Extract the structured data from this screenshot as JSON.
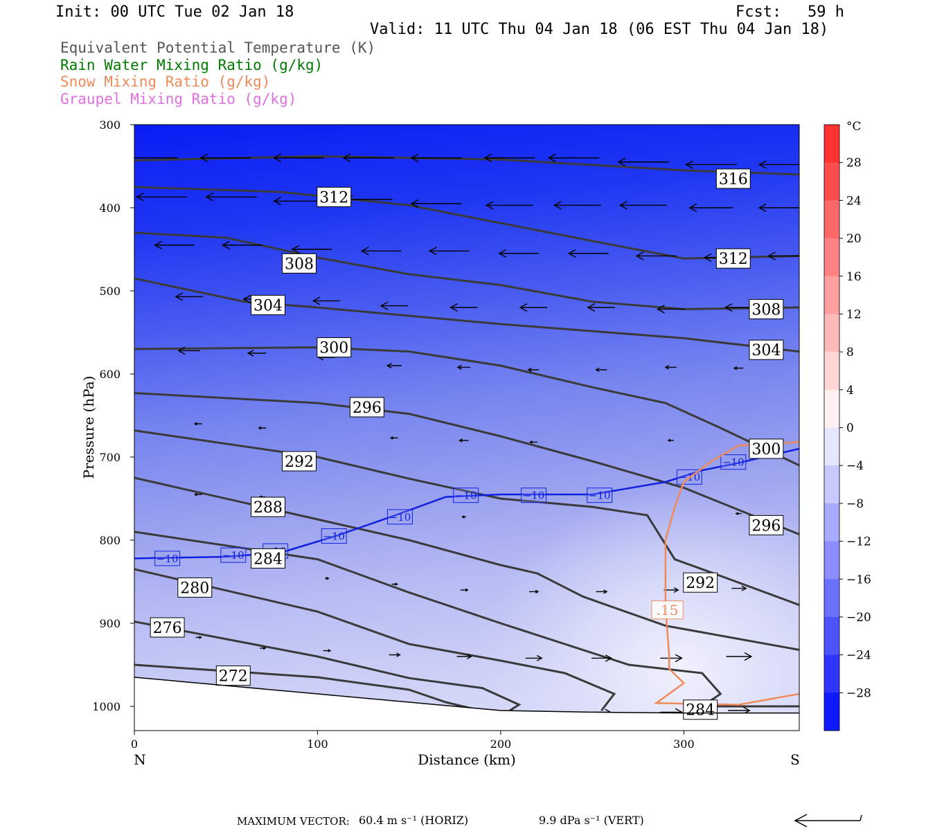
{
  "header": {
    "init": "Init: 00 UTC Tue 02 Jan 18",
    "fcst_label": "Fcst:",
    "fcst_value": "59 h",
    "valid": "Valid: 11 UTC Thu 04 Jan 18 (06 EST Thu 04 Jan 18)"
  },
  "legend": [
    {
      "label": "Equivalent Potential Temperature (K)",
      "color": "#555555"
    },
    {
      "label": "Rain Water Mixing Ratio (g/kg)",
      "color": "#007a00"
    },
    {
      "label": "Snow Mixing Ratio (g/kg)",
      "color": "#f08a5a"
    },
    {
      "label": "Graupel Mixing Ratio (g/kg)",
      "color": "#e070e0"
    }
  ],
  "chart_data": {
    "type": "cross-section",
    "xlabel": "Distance (km)",
    "ylabel": "Pressure (hPa)",
    "xlim": [
      0,
      363
    ],
    "ylim": [
      1030,
      300
    ],
    "x_ticks": [
      0,
      100,
      200,
      300
    ],
    "y_ticks": [
      300,
      400,
      500,
      600,
      700,
      800,
      900,
      1000
    ],
    "x_end_labels": {
      "left": "N",
      "right": "S"
    },
    "colorbar": {
      "unit": "°C",
      "min": -32,
      "max": 32,
      "step": 4,
      "tick_labels": [
        "28",
        "24",
        "20",
        "16",
        "12",
        "8",
        "4",
        "0",
        "−4",
        "−8",
        "−12",
        "−16",
        "−20",
        "−24",
        "−28"
      ]
    },
    "theta_e_contours": [
      {
        "value": 316,
        "points": [
          [
            0,
            343
          ],
          [
            100,
            338
          ],
          [
            200,
            342
          ],
          [
            300,
            355
          ],
          [
            363,
            360
          ]
        ]
      },
      {
        "value": 312,
        "points": [
          [
            0,
            375
          ],
          [
            80,
            381
          ],
          [
            150,
            397
          ],
          [
            250,
            440
          ],
          [
            300,
            461
          ],
          [
            363,
            458
          ]
        ]
      },
      {
        "value": 308,
        "points": [
          [
            0,
            430
          ],
          [
            50,
            436
          ],
          [
            100,
            460
          ],
          [
            150,
            480
          ],
          [
            200,
            493
          ],
          [
            250,
            513
          ],
          [
            300,
            522
          ],
          [
            363,
            520
          ]
        ]
      },
      {
        "value": 304,
        "points": [
          [
            0,
            485
          ],
          [
            60,
            513
          ],
          [
            100,
            520
          ],
          [
            200,
            540
          ],
          [
            300,
            557
          ],
          [
            363,
            573
          ]
        ]
      },
      {
        "value": 300,
        "points": [
          [
            0,
            570
          ],
          [
            100,
            568
          ],
          [
            150,
            573
          ],
          [
            200,
            590
          ],
          [
            250,
            616
          ],
          [
            290,
            635
          ],
          [
            320,
            665
          ],
          [
            363,
            710
          ]
        ]
      },
      {
        "value": 296,
        "points": [
          [
            0,
            623
          ],
          [
            100,
            635
          ],
          [
            150,
            648
          ],
          [
            200,
            675
          ],
          [
            250,
            705
          ],
          [
            300,
            737
          ],
          [
            363,
            793
          ]
        ]
      },
      {
        "value": 292,
        "points": [
          [
            0,
            668
          ],
          [
            100,
            700
          ],
          [
            150,
            726
          ],
          [
            200,
            750
          ],
          [
            250,
            760
          ],
          [
            280,
            770
          ],
          [
            295,
            823
          ],
          [
            320,
            843
          ],
          [
            363,
            878
          ]
        ]
      },
      {
        "value": 288,
        "points": [
          [
            0,
            725
          ],
          [
            100,
            775
          ],
          [
            150,
            800
          ],
          [
            200,
            830
          ],
          [
            220,
            840
          ],
          [
            245,
            868
          ],
          [
            290,
            903
          ],
          [
            363,
            932
          ]
        ]
      },
      {
        "value": 284,
        "points": [
          [
            0,
            790
          ],
          [
            100,
            823
          ],
          [
            150,
            863
          ],
          [
            200,
            900
          ],
          [
            270,
            950
          ],
          [
            310,
            960
          ],
          [
            320,
            985
          ],
          [
            310,
            1000
          ],
          [
            363,
            1000
          ]
        ]
      },
      {
        "value": 280,
        "points": [
          [
            0,
            835
          ],
          [
            100,
            886
          ],
          [
            150,
            925
          ],
          [
            200,
            945
          ],
          [
            235,
            960
          ],
          [
            262,
            985
          ],
          [
            255,
            1005
          ]
        ]
      },
      {
        "value": 276,
        "points": [
          [
            0,
            898
          ],
          [
            100,
            940
          ],
          [
            150,
            966
          ],
          [
            190,
            978
          ],
          [
            210,
            998
          ],
          [
            205,
            1005
          ]
        ]
      },
      {
        "value": 272,
        "points": [
          [
            0,
            950
          ],
          [
            100,
            965
          ],
          [
            150,
            980
          ],
          [
            170,
            995
          ],
          [
            185,
            1003
          ]
        ]
      }
    ],
    "theta_e_labels": [
      {
        "value": "316",
        "x": 327,
        "p": 365
      },
      {
        "value": "312",
        "x": 109,
        "p": 387
      },
      {
        "value": "312",
        "x": 327,
        "p": 461
      },
      {
        "value": "308",
        "x": 90,
        "p": 467
      },
      {
        "value": "308",
        "x": 345,
        "p": 522
      },
      {
        "value": "304",
        "x": 73,
        "p": 517
      },
      {
        "value": "304",
        "x": 345,
        "p": 571
      },
      {
        "value": "300",
        "x": 109,
        "p": 568
      },
      {
        "value": "300",
        "x": 345,
        "p": 690
      },
      {
        "value": "296",
        "x": 127,
        "p": 640
      },
      {
        "value": "296",
        "x": 345,
        "p": 782
      },
      {
        "value": "292",
        "x": 90,
        "p": 705
      },
      {
        "value": "292",
        "x": 309,
        "p": 851
      },
      {
        "value": "288",
        "x": 73,
        "p": 760
      },
      {
        "value": "284",
        "x": 73,
        "p": 822
      },
      {
        "value": "284",
        "x": 309,
        "p": 1004
      },
      {
        "value": "280",
        "x": 33,
        "p": 857
      },
      {
        "value": "276",
        "x": 18,
        "p": 905
      },
      {
        "value": "272",
        "x": 54,
        "p": 963
      }
    ],
    "isotherm_minus10": {
      "value": "−10",
      "points": [
        [
          0,
          822
        ],
        [
          50,
          820
        ],
        [
          80,
          815
        ],
        [
          110,
          795
        ],
        [
          140,
          772
        ],
        [
          170,
          748
        ],
        [
          200,
          745
        ],
        [
          250,
          745
        ],
        [
          290,
          730
        ],
        [
          310,
          716
        ],
        [
          330,
          707
        ],
        [
          363,
          690
        ]
      ],
      "label_positions": [
        [
          18,
          822
        ],
        [
          54,
          818
        ],
        [
          77,
          813
        ],
        [
          109,
          795
        ],
        [
          145,
          772
        ],
        [
          181,
          746
        ],
        [
          218,
          746
        ],
        [
          254,
          746
        ],
        [
          303,
          724
        ],
        [
          327,
          706
        ]
      ]
    },
    "snow_contour": {
      "value": ".15",
      "points": [
        [
          363,
          682
        ],
        [
          330,
          686
        ],
        [
          315,
          705
        ],
        [
          300,
          730
        ],
        [
          295,
          760
        ],
        [
          290,
          800
        ],
        [
          290,
          880
        ],
        [
          292,
          940
        ],
        [
          292,
          955
        ],
        [
          300,
          972
        ],
        [
          285,
          996
        ],
        [
          330,
          998
        ],
        [
          363,
          985
        ]
      ],
      "label_position": [
        291,
        884
      ]
    },
    "wind_vectors": [
      {
        "x": 10,
        "p": 340,
        "len": 28
      },
      {
        "x": 50,
        "p": 340,
        "len": 28
      },
      {
        "x": 90,
        "p": 340,
        "len": 28
      },
      {
        "x": 128,
        "p": 340,
        "len": 28
      },
      {
        "x": 165,
        "p": 340,
        "len": 28
      },
      {
        "x": 205,
        "p": 340,
        "len": 28
      },
      {
        "x": 240,
        "p": 340,
        "len": 28
      },
      {
        "x": 278,
        "p": 345,
        "len": 28
      },
      {
        "x": 315,
        "p": 348,
        "len": 28
      },
      {
        "x": 352,
        "p": 348,
        "len": 22
      },
      {
        "x": 15,
        "p": 387,
        "len": 28
      },
      {
        "x": 53,
        "p": 387,
        "len": 28
      },
      {
        "x": 90,
        "p": 392,
        "len": 28
      },
      {
        "x": 128,
        "p": 390,
        "len": 26
      },
      {
        "x": 165,
        "p": 395,
        "len": 28
      },
      {
        "x": 205,
        "p": 397,
        "len": 26
      },
      {
        "x": 242,
        "p": 397,
        "len": 26
      },
      {
        "x": 278,
        "p": 397,
        "len": 26
      },
      {
        "x": 315,
        "p": 400,
        "len": 24
      },
      {
        "x": 352,
        "p": 400,
        "len": 22
      },
      {
        "x": 22,
        "p": 445,
        "len": 22
      },
      {
        "x": 59,
        "p": 445,
        "len": 22
      },
      {
        "x": 97,
        "p": 450,
        "len": 22
      },
      {
        "x": 135,
        "p": 452,
        "len": 22
      },
      {
        "x": 172,
        "p": 452,
        "len": 22
      },
      {
        "x": 210,
        "p": 455,
        "len": 22
      },
      {
        "x": 248,
        "p": 455,
        "len": 22
      },
      {
        "x": 285,
        "p": 458,
        "len": 22
      },
      {
        "x": 322,
        "p": 460,
        "len": 22
      },
      {
        "x": 355,
        "p": 458,
        "len": 18
      },
      {
        "x": 30,
        "p": 507,
        "len": 15
      },
      {
        "x": 67,
        "p": 510,
        "len": 15
      },
      {
        "x": 105,
        "p": 512,
        "len": 15
      },
      {
        "x": 142,
        "p": 518,
        "len": 15
      },
      {
        "x": 180,
        "p": 520,
        "len": 15
      },
      {
        "x": 218,
        "p": 520,
        "len": 15
      },
      {
        "x": 255,
        "p": 520,
        "len": 15
      },
      {
        "x": 293,
        "p": 522,
        "len": 15
      },
      {
        "x": 330,
        "p": 520,
        "len": 15
      },
      {
        "x": 30,
        "p": 572,
        "len": 12
      },
      {
        "x": 67,
        "p": 575,
        "len": 10
      },
      {
        "x": 105,
        "p": 580,
        "len": 9
      },
      {
        "x": 142,
        "p": 590,
        "len": 8
      },
      {
        "x": 180,
        "p": 592,
        "len": 7
      },
      {
        "x": 218,
        "p": 595,
        "len": 6
      },
      {
        "x": 255,
        "p": 595,
        "len": 6
      },
      {
        "x": 293,
        "p": 592,
        "len": 6
      },
      {
        "x": 330,
        "p": 593,
        "len": 5
      },
      {
        "x": 35,
        "p": 660,
        "len": 4
      },
      {
        "x": 70,
        "p": 665,
        "len": 4
      },
      {
        "x": 142,
        "p": 677,
        "len": 4
      },
      {
        "x": 180,
        "p": 680,
        "len": 5
      },
      {
        "x": 218,
        "p": 682,
        "len": 4
      },
      {
        "x": 293,
        "p": 680,
        "len": 3
      },
      {
        "x": 35,
        "p": 745,
        "len": 4
      },
      {
        "x": 70,
        "p": 748,
        "len": 3
      },
      {
        "x": 180,
        "p": 772,
        "len": 2
      },
      {
        "x": 330,
        "p": 768,
        "len": 3
      },
      {
        "x": 105,
        "p": 846,
        "len": 2
      },
      {
        "x": 142,
        "p": 853,
        "len": 3
      },
      {
        "x": 180,
        "p": 860,
        "len": 4
      },
      {
        "x": 218,
        "p": 862,
        "len": 5
      },
      {
        "x": 255,
        "p": 862,
        "len": 6
      },
      {
        "x": 293,
        "p": 860,
        "len": 8
      },
      {
        "x": 330,
        "p": 858,
        "len": 8
      },
      {
        "x": 35,
        "p": 917,
        "len": 3
      },
      {
        "x": 70,
        "p": 930,
        "len": 3
      },
      {
        "x": 105,
        "p": 933,
        "len": 4
      },
      {
        "x": 142,
        "p": 938,
        "len": 6
      },
      {
        "x": 180,
        "p": 940,
        "len": 8
      },
      {
        "x": 218,
        "p": 942,
        "len": 9
      },
      {
        "x": 255,
        "p": 942,
        "len": 11
      },
      {
        "x": 293,
        "p": 942,
        "len": 12
      },
      {
        "x": 330,
        "p": 940,
        "len": 14
      },
      {
        "x": 35,
        "p": 995,
        "len": 3
      },
      {
        "x": 70,
        "p": 998,
        "len": 3
      },
      {
        "x": 105,
        "p": 1001,
        "len": 4
      },
      {
        "x": 142,
        "p": 1004,
        "len": 5
      },
      {
        "x": 180,
        "p": 1007,
        "len": 6
      },
      {
        "x": 218,
        "p": 1008,
        "len": 7
      },
      {
        "x": 255,
        "p": 1007,
        "len": 10
      },
      {
        "x": 293,
        "p": 1007,
        "len": 12
      },
      {
        "x": 330,
        "p": 1005,
        "len": 12
      }
    ]
  },
  "footer": {
    "max_vector_label": "MAXIMUM VECTOR:",
    "horiz": "60.4 m s⁻¹ (HORIZ)",
    "vert": "9.9 dPa s⁻¹ (VERT)"
  }
}
